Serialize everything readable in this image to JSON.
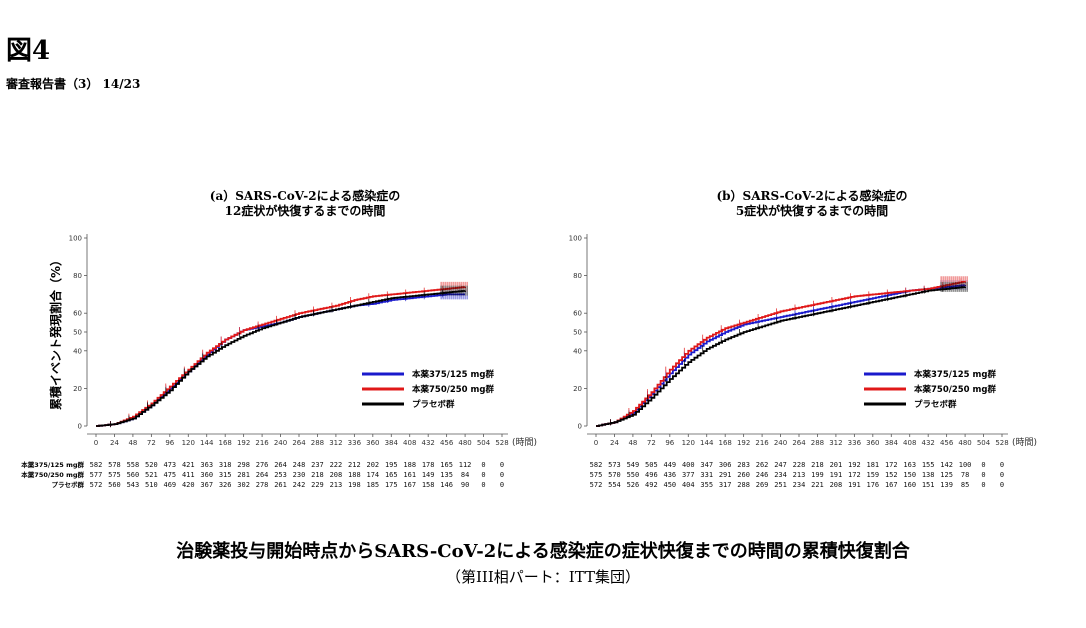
{
  "header": {
    "figure_label": "図4",
    "subtitle": "審査報告書（3） 14/23"
  },
  "caption": {
    "main": "治験薬投与開始時点からSARS-CoV-2による感染症の症状快復までの時間の累積快復割合",
    "sub": "（第III相パート：ITT集団）"
  },
  "colors": {
    "low_dose": "#1a1acc",
    "high_dose": "#e01818",
    "placebo": "#000000"
  },
  "chart_data": [
    {
      "type": "line",
      "panel": "a",
      "title_lines": [
        "(a）SARS-CoV-2による感染症の",
        "12症状が快復するまでの時間"
      ],
      "ylabel": "累積イベント発現割合（%）",
      "xlabel": "(時間)",
      "xlim": [
        0,
        528
      ],
      "ylim": [
        0,
        100
      ],
      "xticks": [
        0,
        24,
        48,
        72,
        96,
        120,
        144,
        168,
        192,
        216,
        240,
        264,
        288,
        312,
        336,
        360,
        384,
        408,
        432,
        456,
        480,
        504,
        528
      ],
      "yticks": [
        0,
        20,
        40,
        50,
        60,
        80,
        100
      ],
      "x": [
        0,
        24,
        48,
        72,
        96,
        120,
        144,
        168,
        192,
        216,
        240,
        264,
        288,
        312,
        336,
        360,
        384,
        408,
        432,
        456,
        480
      ],
      "series": [
        {
          "name": "本薬375/125 mg群",
          "color": "#1a1acc",
          "values": [
            0,
            1,
            4,
            11,
            20,
            29,
            38,
            46,
            51,
            53,
            55,
            58,
            60,
            62,
            64,
            65,
            67,
            68,
            69,
            70,
            70
          ]
        },
        {
          "name": "本薬750/250 mg群",
          "color": "#e01818",
          "values": [
            0,
            1,
            5,
            12,
            21,
            30,
            39,
            46,
            51,
            54,
            57,
            60,
            62,
            64,
            67,
            69,
            70,
            71,
            72,
            73,
            74
          ]
        },
        {
          "name": "プラセボ群",
          "color": "#000000",
          "values": [
            0,
            1,
            4,
            11,
            19,
            29,
            37,
            43,
            48,
            52,
            55,
            58,
            60,
            62,
            64,
            66,
            68,
            69,
            70,
            71,
            72
          ]
        }
      ],
      "risk_table": {
        "labels": [
          "本薬375/125 mg群",
          "本薬750/250 mg群",
          "プラセボ群"
        ],
        "rows": [
          [
            "582",
            "578",
            "558",
            "520",
            "473",
            "421",
            "363",
            "318",
            "298",
            "276",
            "264",
            "248",
            "237",
            "222",
            "212",
            "202",
            "195",
            "188",
            "178",
            "165",
            "112",
            "0",
            "0"
          ],
          [
            "577",
            "575",
            "560",
            "521",
            "475",
            "411",
            "360",
            "315",
            "281",
            "264",
            "253",
            "230",
            "218",
            "208",
            "188",
            "174",
            "165",
            "161",
            "149",
            "135",
            "84",
            "0",
            "0"
          ],
          [
            "572",
            "560",
            "543",
            "510",
            "469",
            "420",
            "367",
            "326",
            "302",
            "278",
            "261",
            "242",
            "229",
            "213",
            "198",
            "185",
            "175",
            "167",
            "158",
            "146",
            "90",
            "0",
            "0"
          ]
        ]
      }
    },
    {
      "type": "line",
      "panel": "b",
      "title_lines": [
        "(b）SARS-CoV-2による感染症の",
        "5症状が快復するまでの時間"
      ],
      "ylabel": "",
      "xlabel": "(時間)",
      "xlim": [
        0,
        528
      ],
      "ylim": [
        0,
        100
      ],
      "xticks": [
        0,
        24,
        48,
        72,
        96,
        120,
        144,
        168,
        192,
        216,
        240,
        264,
        288,
        312,
        336,
        360,
        384,
        408,
        432,
        456,
        480,
        504,
        528
      ],
      "yticks": [
        0,
        20,
        40,
        50,
        60,
        80,
        100
      ],
      "x": [
        0,
        24,
        48,
        72,
        96,
        120,
        144,
        168,
        192,
        216,
        240,
        264,
        288,
        312,
        336,
        360,
        384,
        408,
        432,
        456,
        480
      ],
      "series": [
        {
          "name": "本薬375/125 mg群",
          "color": "#1a1acc",
          "values": [
            0,
            2,
            7,
            17,
            28,
            38,
            45,
            50,
            54,
            56,
            58,
            60,
            62,
            64,
            66,
            68,
            70,
            72,
            73,
            74,
            75
          ]
        },
        {
          "name": "本薬750/250 mg群",
          "color": "#e01818",
          "values": [
            0,
            2,
            8,
            18,
            30,
            40,
            47,
            52,
            55,
            58,
            61,
            63,
            65,
            67,
            69,
            70,
            71,
            72,
            73,
            75,
            77
          ]
        },
        {
          "name": "プラセボ群",
          "color": "#000000",
          "values": [
            0,
            2,
            6,
            15,
            25,
            34,
            41,
            46,
            50,
            53,
            56,
            58,
            60,
            62,
            64,
            66,
            68,
            70,
            72,
            73,
            74
          ]
        }
      ],
      "risk_table": {
        "labels": [
          "",
          "",
          ""
        ],
        "rows": [
          [
            "582",
            "573",
            "549",
            "505",
            "449",
            "400",
            "347",
            "306",
            "283",
            "262",
            "247",
            "228",
            "218",
            "201",
            "192",
            "181",
            "172",
            "163",
            "155",
            "142",
            "100",
            "0",
            "0"
          ],
          [
            "575",
            "570",
            "550",
            "496",
            "436",
            "377",
            "331",
            "291",
            "260",
            "246",
            "234",
            "213",
            "199",
            "191",
            "172",
            "159",
            "152",
            "150",
            "138",
            "125",
            "78",
            "0",
            "0"
          ],
          [
            "572",
            "554",
            "526",
            "492",
            "450",
            "404",
            "355",
            "317",
            "288",
            "269",
            "251",
            "234",
            "221",
            "208",
            "191",
            "176",
            "167",
            "160",
            "151",
            "139",
            "85",
            "0",
            "0"
          ]
        ]
      }
    }
  ]
}
